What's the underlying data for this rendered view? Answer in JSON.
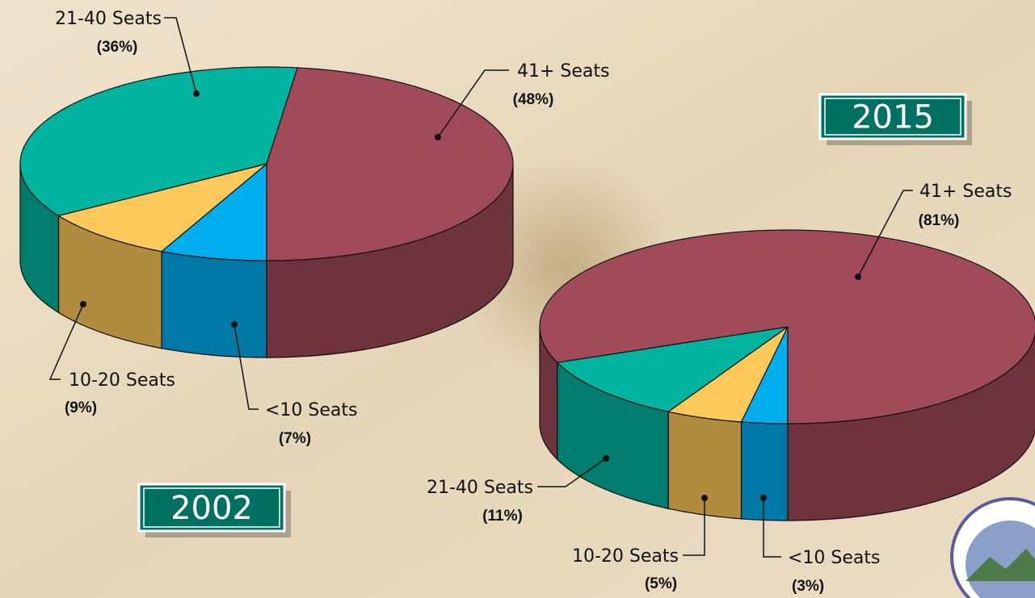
{
  "chart_data": [
    {
      "type": "pie3d",
      "title": "2002",
      "categories": [
        "<10 Seats",
        "10-20 Seats",
        "21-40 Seats",
        "41+ Seats"
      ],
      "values": [
        7,
        9,
        36,
        48
      ],
      "value_labels": [
        "(7%)",
        "(9%)",
        "(36%)",
        "(48%)"
      ],
      "colors": [
        "#00aeef",
        "#fdc95a",
        "#00b4a0",
        "#a04a5a"
      ]
    },
    {
      "type": "pie3d",
      "title": "2015",
      "categories": [
        "<10 Seats",
        "10-20 Seats",
        "21-40 Seats",
        "41+ Seats"
      ],
      "values": [
        3,
        5,
        11,
        81
      ],
      "value_labels": [
        "(3%)",
        "(5%)",
        "(11%)",
        "(81%)"
      ],
      "colors": [
        "#00aeef",
        "#fdc95a",
        "#00b4a0",
        "#a04a5a"
      ]
    }
  ]
}
